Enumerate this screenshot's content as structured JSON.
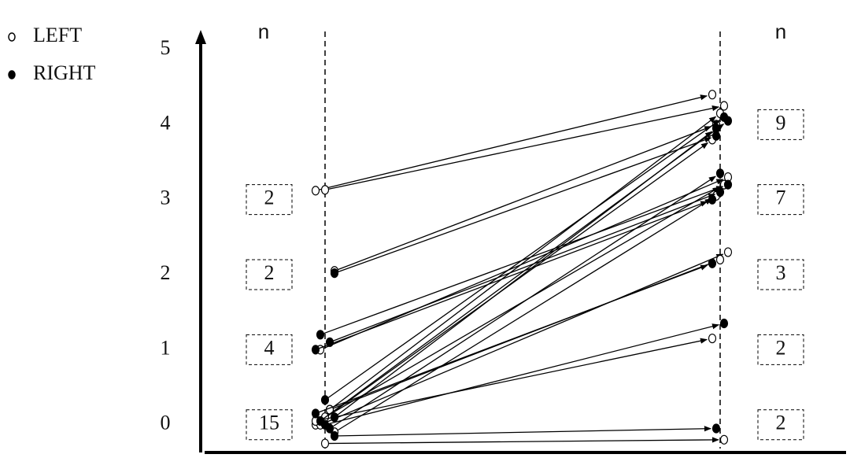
{
  "chart_data": {
    "type": "slope",
    "ylim": [
      -0.37,
      5.22
    ],
    "yticks": [
      0,
      1,
      2,
      3,
      4,
      5
    ],
    "n_label": "n",
    "left_counts": {
      "levels": [
        3,
        2,
        1,
        0
      ],
      "values": [
        2,
        2,
        4,
        15
      ]
    },
    "right_counts": {
      "levels": [
        4,
        3,
        2,
        1,
        0
      ],
      "values": [
        9,
        7,
        3,
        2,
        2
      ]
    },
    "series": [
      {
        "name": "LEFT",
        "color": "#ffffff",
        "start": [
          3.12,
          3.13,
          2.05,
          1.0,
          0.2,
          0.0,
          0.1,
          -0.1,
          0.0,
          0.2,
          0.05,
          -0.25
        ],
        "end": [
          4.4,
          4.25,
          4.0,
          3.3,
          4.15,
          3.8,
          3.2,
          3.05,
          2.3,
          2.2,
          1.15,
          -0.2
        ]
      },
      {
        "name": "RIGHT",
        "color": "#000000",
        "start": [
          2.02,
          1.2,
          1.1,
          1.0,
          0.33,
          0.1,
          0.05,
          -0.05,
          0.15,
          0.0,
          -0.15
        ],
        "end": [
          3.85,
          3.2,
          3.1,
          3.0,
          4.1,
          3.95,
          4.05,
          3.35,
          2.15,
          1.35,
          -0.05
        ]
      }
    ]
  }
}
